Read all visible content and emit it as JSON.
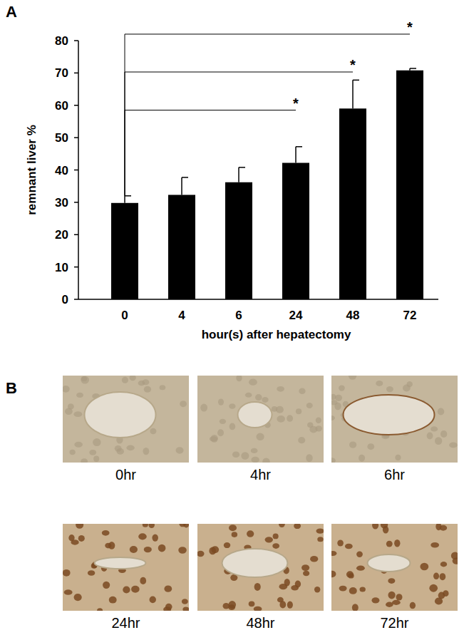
{
  "chart_data": {
    "type": "bar",
    "x_label": "hour(s) after hepatectomy",
    "y_label": "remnant liver %",
    "categories": [
      "0",
      "4",
      "6",
      "24",
      "48",
      "72"
    ],
    "values": [
      29.8,
      32.3,
      36.2,
      42.2,
      59.0,
      70.8
    ],
    "errors": [
      2.2,
      5.4,
      4.6,
      5.0,
      8.8,
      0.6
    ],
    "color": "#000000",
    "ylim": [
      0,
      80
    ],
    "yticks": [
      0,
      10,
      20,
      30,
      40,
      50,
      60,
      70,
      80
    ],
    "grid": false,
    "brackets": [
      {
        "from": 0,
        "to": 3,
        "y": 58.5,
        "label": "*"
      },
      {
        "from": 0,
        "to": 4,
        "y": 70.3,
        "label": "*"
      },
      {
        "from": 0,
        "to": 5,
        "y": 82.0,
        "label": "*"
      }
    ]
  },
  "panel_labels": [
    "A",
    "B"
  ],
  "micrograph_labels": [
    "0hr",
    "4hr",
    "6hr",
    "24hr",
    "48hr",
    "72hr"
  ]
}
